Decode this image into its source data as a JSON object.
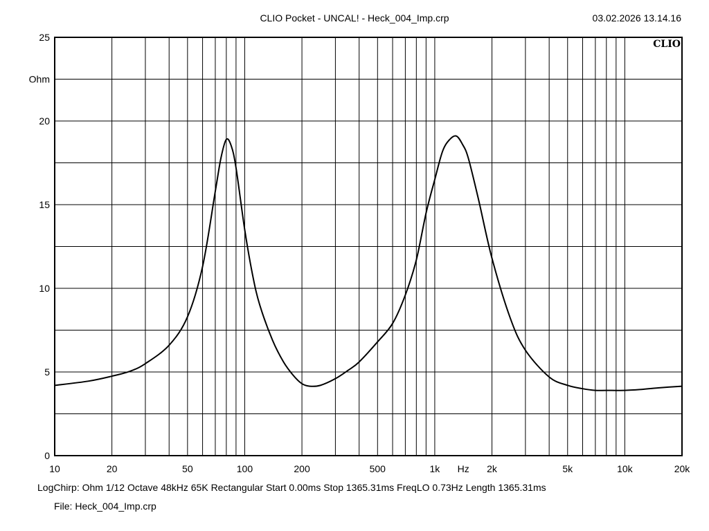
{
  "header": {
    "title": "CLIO Pocket - UNCAL! - Heck_004_Imp.crp",
    "datetime": "03.02.2026 13.14.16"
  },
  "logo_text": "CLIO",
  "footer": {
    "info": "LogChirp:  Ohm   1/12 Octave   48kHz   65K   Rectangular   Start 0.00ms    Stop 1365.31ms    FreqLO 0.73Hz    Length 1365.31ms",
    "file": "File: Heck_004_Imp.crp"
  },
  "chart_data": {
    "type": "line",
    "xscale": "log",
    "xlim": [
      10,
      20000
    ],
    "ylim": [
      0,
      25
    ],
    "xlabel": "Hz",
    "ylabel": "Ohm",
    "grid": true,
    "x_ticks": [
      {
        "value": 10,
        "label": "10"
      },
      {
        "value": 20,
        "label": "20"
      },
      {
        "value": 50,
        "label": "50"
      },
      {
        "value": 100,
        "label": "100"
      },
      {
        "value": 200,
        "label": "200"
      },
      {
        "value": 500,
        "label": "500"
      },
      {
        "value": 1000,
        "label": "1k"
      },
      {
        "value": 2000,
        "label": "2k"
      },
      {
        "value": 5000,
        "label": "5k"
      },
      {
        "value": 10000,
        "label": "10k"
      },
      {
        "value": 20000,
        "label": "20k"
      }
    ],
    "y_ticks": [
      {
        "value": 0,
        "label": "0"
      },
      {
        "value": 5,
        "label": "5"
      },
      {
        "value": 10,
        "label": "10"
      },
      {
        "value": 15,
        "label": "15"
      },
      {
        "value": 20,
        "label": "20"
      },
      {
        "value": 25,
        "label": "25"
      }
    ],
    "series": [
      {
        "color": "#000000",
        "x": [
          10,
          15,
          20,
          25,
          30,
          40,
          50,
          60,
          70,
          75,
          80,
          85,
          90,
          100,
          110,
          120,
          140,
          160,
          180,
          200,
          220,
          250,
          300,
          350,
          400,
          500,
          600,
          700,
          800,
          900,
          1000,
          1100,
          1200,
          1300,
          1400,
          1500,
          1700,
          2000,
          2500,
          3000,
          4000,
          5000,
          6000,
          7000,
          8000,
          10000,
          12000,
          15000,
          20000
        ],
        "y": [
          4.2,
          4.45,
          4.75,
          5.05,
          5.5,
          6.6,
          8.3,
          11.3,
          15.8,
          17.8,
          18.9,
          18.5,
          17.2,
          13.5,
          10.8,
          9.0,
          6.9,
          5.6,
          4.8,
          4.3,
          4.15,
          4.2,
          4.6,
          5.1,
          5.6,
          6.8,
          7.9,
          9.6,
          11.7,
          14.5,
          16.5,
          18.2,
          18.9,
          19.1,
          18.6,
          17.8,
          15.3,
          11.8,
          8.2,
          6.3,
          4.7,
          4.2,
          4.0,
          3.9,
          3.9,
          3.9,
          3.95,
          4.05,
          4.15
        ]
      }
    ]
  }
}
